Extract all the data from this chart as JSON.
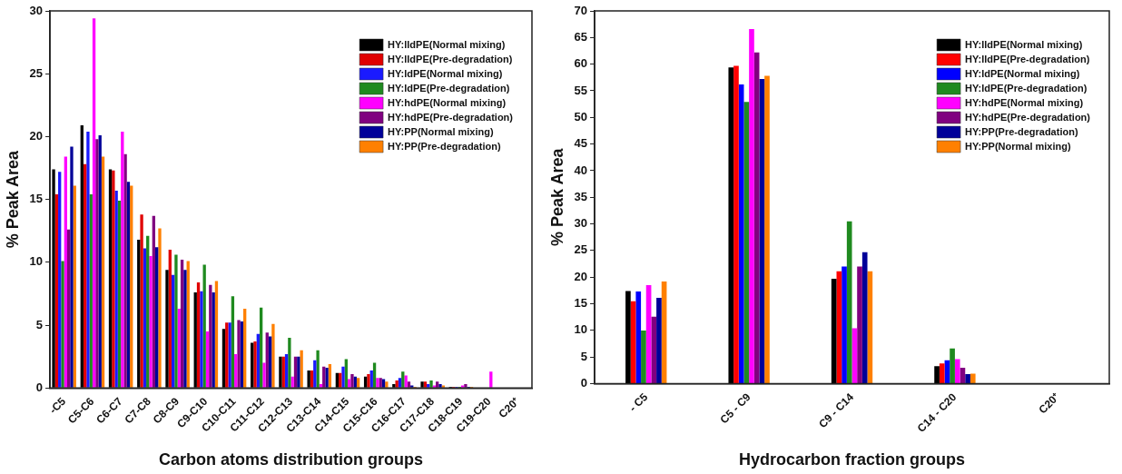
{
  "chart_data": [
    {
      "type": "bar",
      "xlabel": "Carbon atoms distribution groups",
      "ylabel": "% Peak Area",
      "categories": [
        "-C5",
        "C5-C6",
        "C6-C7",
        "C7-C8",
        "C8-C9",
        "C9-C10",
        "C10-C11",
        "C11-C12",
        "C12-C13",
        "C13-C14",
        "C14-C15",
        "C15-C16",
        "C16-C17",
        "C17-C18",
        "C18-C19",
        "C19-C20",
        "C20⁺"
      ],
      "series": [
        {
          "name": "HY:lldPE(Normal mixing)",
          "color": "#000000",
          "values": [
            17.4,
            20.9,
            17.4,
            11.8,
            9.4,
            7.6,
            4.7,
            3.6,
            2.5,
            1.4,
            1.2,
            0.9,
            0.3,
            0.5,
            0.1,
            0,
            0
          ]
        },
        {
          "name": "HY:lldPE(Pre-degradation)",
          "color": "#e00000",
          "values": [
            15.4,
            17.8,
            17.3,
            13.8,
            11.0,
            8.4,
            5.2,
            3.7,
            2.5,
            1.4,
            1.2,
            1.1,
            0.6,
            0.5,
            0.1,
            0,
            0
          ]
        },
        {
          "name": "HY:ldPE(Normal mixing)",
          "color": "#1a1aff",
          "values": [
            17.2,
            20.4,
            15.7,
            11.1,
            9.0,
            7.7,
            5.2,
            4.3,
            2.7,
            2.2,
            1.7,
            1.4,
            0.8,
            0.3,
            0.1,
            0,
            0
          ]
        },
        {
          "name": "HY:ldPE(Pre-degradation)",
          "color": "#1f8a1f",
          "values": [
            10.1,
            15.4,
            14.9,
            12.1,
            10.6,
            9.8,
            7.3,
            6.4,
            4.0,
            3.0,
            2.3,
            2.0,
            1.3,
            0.6,
            0.1,
            0,
            0
          ]
        },
        {
          "name": "HY:hdPE(Normal mixing)",
          "color": "#ff00ff",
          "values": [
            18.4,
            29.4,
            20.4,
            10.5,
            6.3,
            4.5,
            2.7,
            2.0,
            0.9,
            0.3,
            0.7,
            0.8,
            1.0,
            0.2,
            0.2,
            1.3,
            0
          ]
        },
        {
          "name": "HY:hdPE(Pre-degradation)",
          "color": "#800080",
          "values": [
            12.6,
            19.8,
            18.6,
            13.7,
            10.2,
            8.2,
            5.4,
            4.4,
            2.5,
            1.7,
            1.1,
            0.8,
            0.5,
            0.5,
            0.3,
            0,
            0
          ]
        },
        {
          "name": "HY:PP(Normal mixing)",
          "color": "#000099",
          "values": [
            19.2,
            20.1,
            16.4,
            11.2,
            9.4,
            7.6,
            5.3,
            4.1,
            2.5,
            1.6,
            0.9,
            0.7,
            0.2,
            0.3,
            0.1,
            0,
            0
          ]
        },
        {
          "name": "HY:PP(Pre-degradation)",
          "color": "#ff8000",
          "values": [
            16.1,
            18.4,
            16.1,
            12.7,
            10.1,
            8.5,
            6.3,
            5.1,
            3.0,
            1.9,
            0.8,
            0.5,
            0.1,
            0.2,
            0.1,
            0,
            0
          ]
        }
      ],
      "ylim": [
        0,
        30
      ],
      "yticks": [
        0,
        5,
        10,
        15,
        20,
        25,
        30
      ],
      "grid": false,
      "legend": "top right"
    },
    {
      "type": "bar",
      "xlabel": "Hydrocarbon fraction groups",
      "ylabel": "% Peak Area",
      "categories": [
        "- C5",
        "C5 - C9",
        "C9 - C14",
        "C14 - C20",
        "C20⁺"
      ],
      "series": [
        {
          "name": "HY:lldPE(Normal mixing)",
          "color": "#000000",
          "values": [
            17.4,
            59.4,
            19.7,
            3.3,
            0
          ]
        },
        {
          "name": "HY:lldPE(Pre-degradation)",
          "color": "#ff0000",
          "values": [
            15.5,
            59.7,
            21.1,
            3.8,
            0
          ]
        },
        {
          "name": "HY:ldPE(Normal mixing)",
          "color": "#0000ff",
          "values": [
            17.3,
            56.2,
            22.0,
            4.4,
            0
          ]
        },
        {
          "name": "HY:ldPE(Pre-degradation)",
          "color": "#1f8a1f",
          "values": [
            10.0,
            52.9,
            30.5,
            6.6,
            0
          ]
        },
        {
          "name": "HY:hdPE(Normal mixing)",
          "color": "#ff00ff",
          "values": [
            18.5,
            66.6,
            10.4,
            4.6,
            0
          ]
        },
        {
          "name": "HY:hdPE(Pre-degradation)",
          "color": "#800080",
          "values": [
            12.6,
            62.2,
            22.0,
            3.0,
            0
          ]
        },
        {
          "name": "HY:PP(Pre-degradation)",
          "color": "#000099",
          "values": [
            16.1,
            57.2,
            24.7,
            1.8,
            0
          ]
        },
        {
          "name": "HY:PP(Normal mixing)",
          "color": "#ff8000",
          "values": [
            19.2,
            57.8,
            21.1,
            1.9,
            0
          ]
        }
      ],
      "ylim": [
        0,
        70
      ],
      "yticks": [
        0,
        5,
        10,
        15,
        20,
        25,
        30,
        35,
        40,
        45,
        50,
        55,
        60,
        65,
        70
      ],
      "grid": false,
      "legend": "top right"
    }
  ]
}
